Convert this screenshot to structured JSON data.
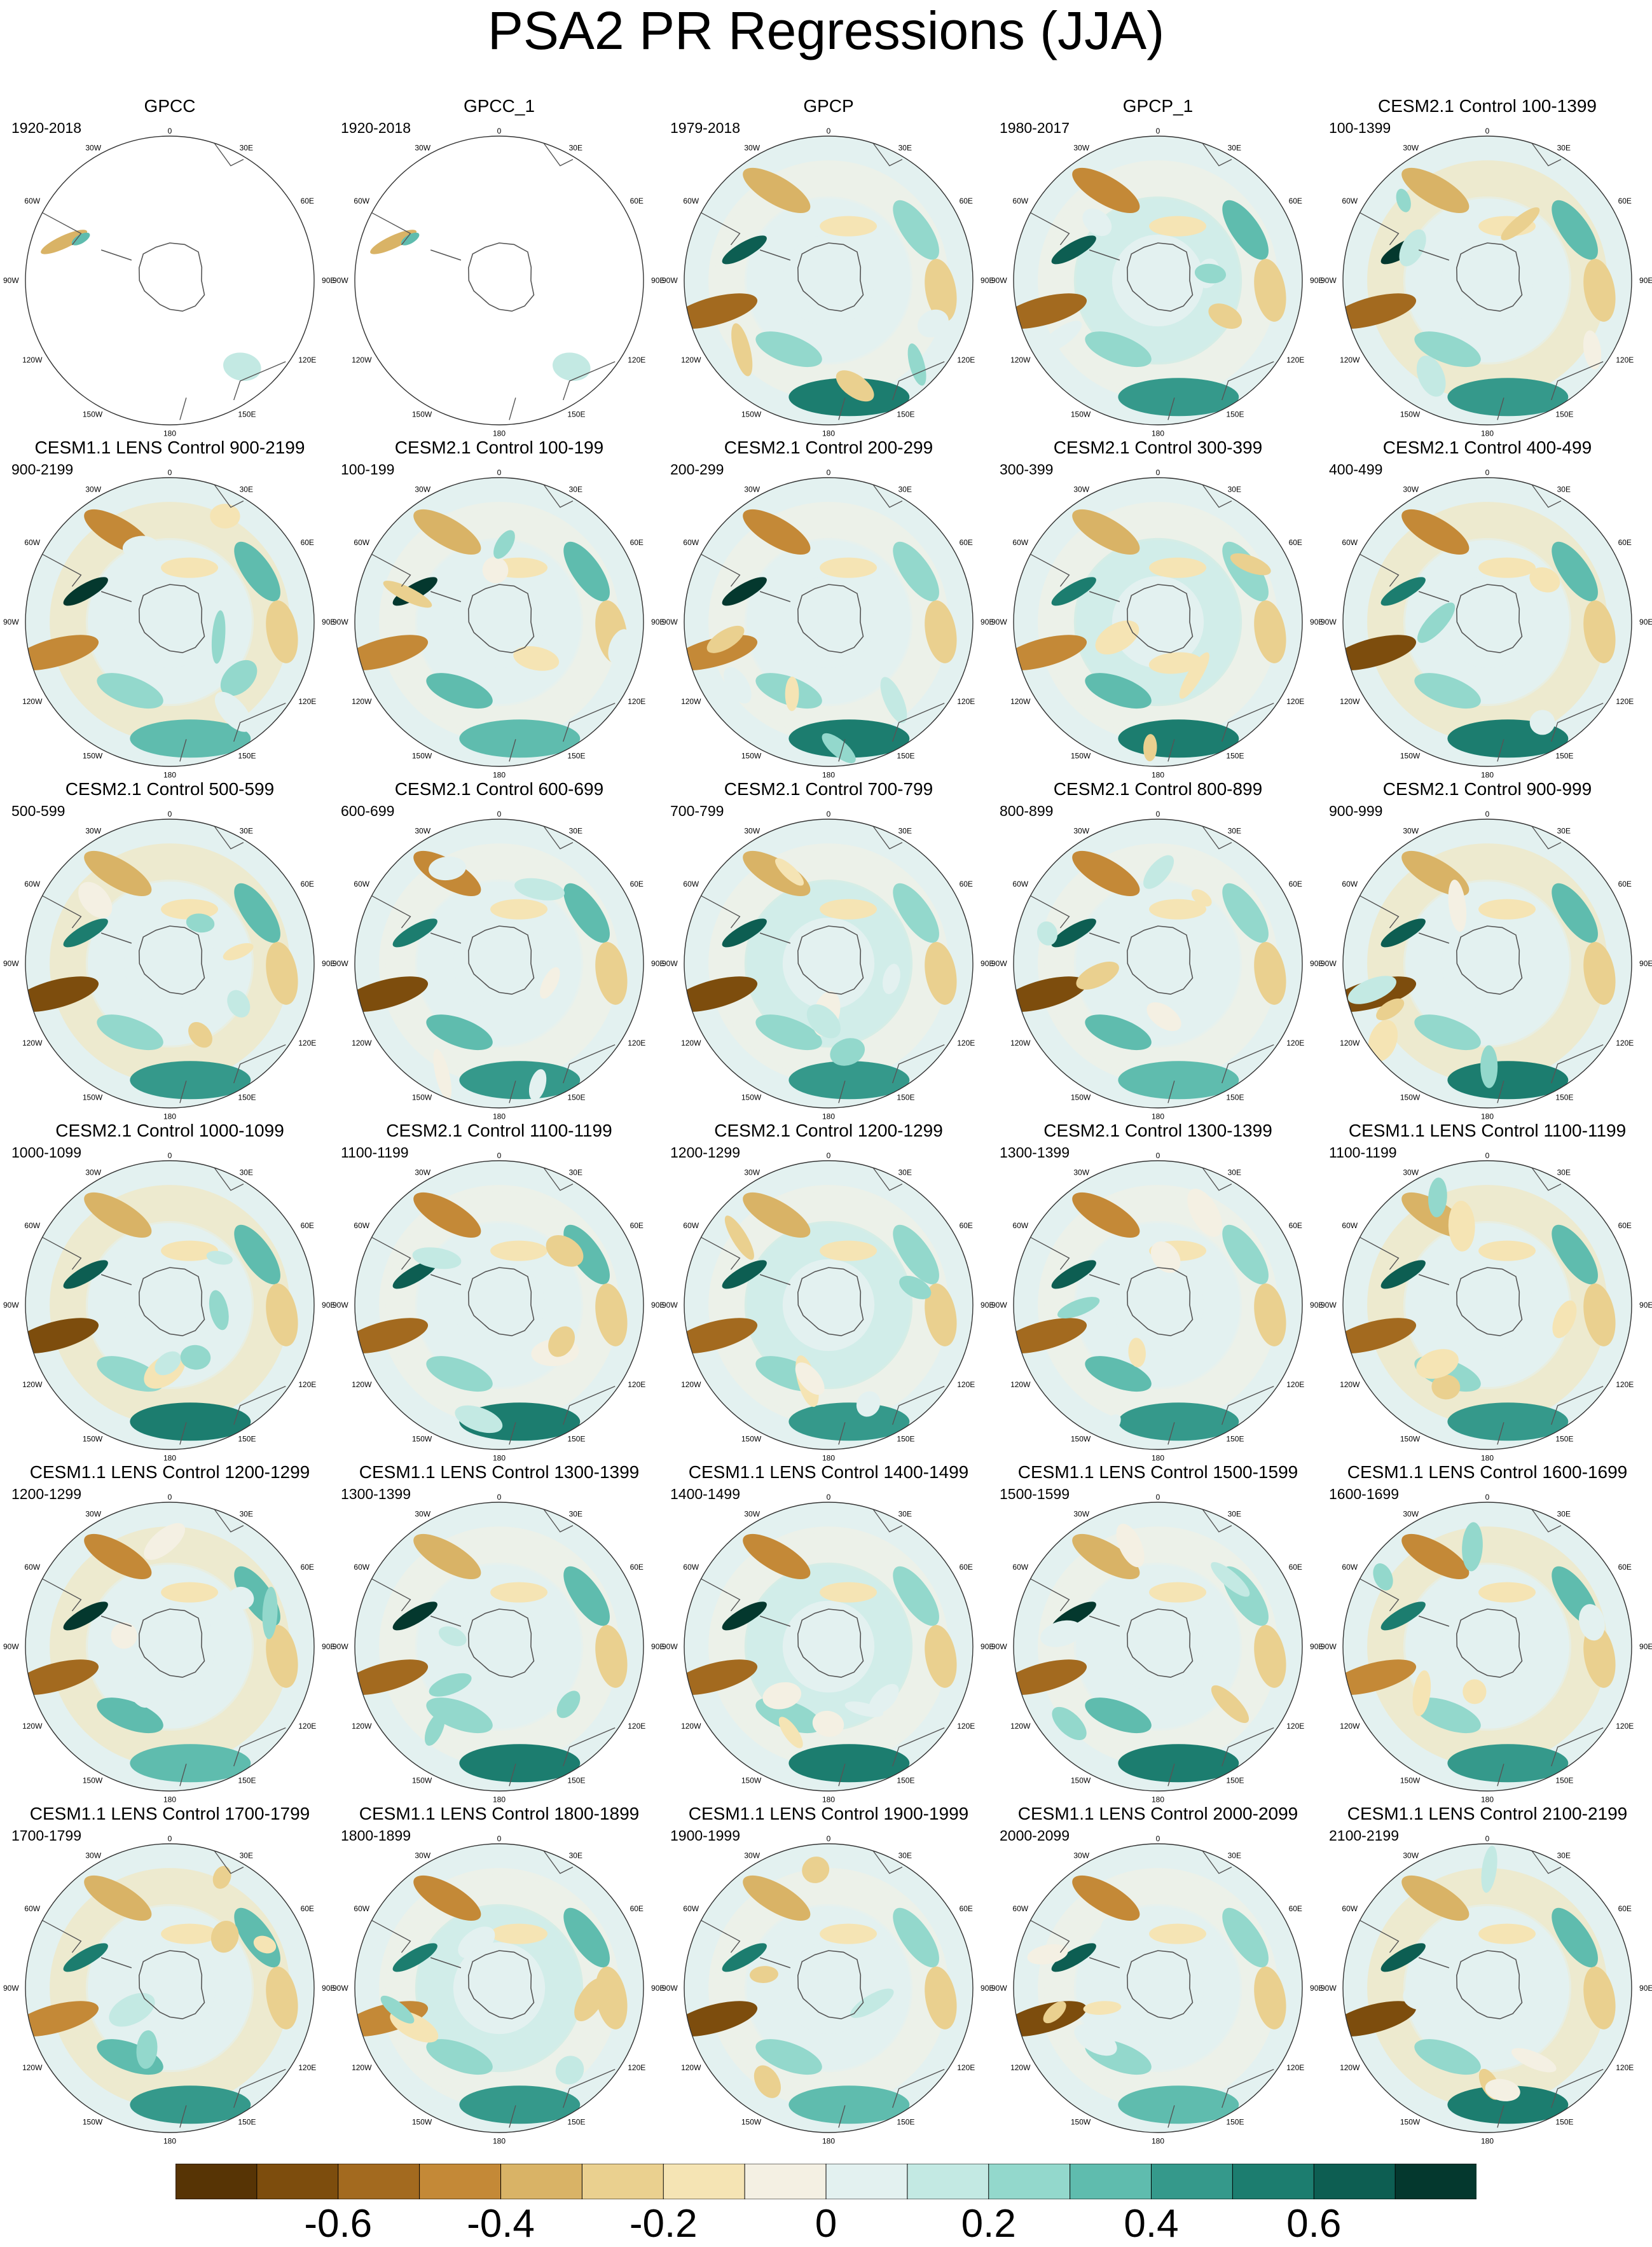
{
  "title": "PSA2 PR Regressions (JJA)",
  "map_labels": {
    "lon_top": "0",
    "lon_bottom": "180",
    "lon_30w": "30W",
    "lon_30e": "30E",
    "lon_60w": "60W",
    "lon_60e": "60E",
    "lon_90w": "90W",
    "lon_90e": "90E",
    "lon_120w": "120W",
    "lon_120e": "120E",
    "lon_150w": "150W",
    "lon_150e": "150E"
  },
  "panels": [
    {
      "title": "GPCC",
      "period": "1920-2018",
      "coverage": "land-only",
      "pattern": {
        "type": "obs-land"
      }
    },
    {
      "title": "GPCC_1",
      "period": "1920-2018",
      "coverage": "land-only",
      "pattern": {
        "type": "obs-land"
      }
    },
    {
      "title": "GPCP",
      "period": "1979-2018",
      "coverage": "full",
      "pattern": {
        "type": "obs"
      }
    },
    {
      "title": "GPCP_1",
      "period": "1980-2017",
      "coverage": "full",
      "pattern": {
        "type": "obs"
      }
    },
    {
      "title": "CESM2.1 Control 100-1399",
      "period": "100-1399",
      "coverage": "full",
      "pattern": {
        "type": "model"
      }
    },
    {
      "title": "CESM1.1 LENS Control 900-2199",
      "period": "900-2199",
      "coverage": "full",
      "pattern": {
        "type": "model"
      }
    },
    {
      "title": "CESM2.1 Control 100-199",
      "period": "100-199",
      "coverage": "full",
      "pattern": {
        "type": "model"
      }
    },
    {
      "title": "CESM2.1 Control 200-299",
      "period": "200-299",
      "coverage": "full",
      "pattern": {
        "type": "model"
      }
    },
    {
      "title": "CESM2.1 Control 300-399",
      "period": "300-399",
      "coverage": "full",
      "pattern": {
        "type": "model"
      }
    },
    {
      "title": "CESM2.1 Control 400-499",
      "period": "400-499",
      "coverage": "full",
      "pattern": {
        "type": "model"
      }
    },
    {
      "title": "CESM2.1 Control 500-599",
      "period": "500-599",
      "coverage": "full",
      "pattern": {
        "type": "model"
      }
    },
    {
      "title": "CESM2.1 Control 600-699",
      "period": "600-699",
      "coverage": "full",
      "pattern": {
        "type": "model"
      }
    },
    {
      "title": "CESM2.1 Control 700-799",
      "period": "700-799",
      "coverage": "full",
      "pattern": {
        "type": "model"
      }
    },
    {
      "title": "CESM2.1 Control 800-899",
      "period": "800-899",
      "coverage": "full",
      "pattern": {
        "type": "model"
      }
    },
    {
      "title": "CESM2.1 Control 900-999",
      "period": "900-999",
      "coverage": "full",
      "pattern": {
        "type": "model"
      }
    },
    {
      "title": "CESM2.1 Control 1000-1099",
      "period": "1000-1099",
      "coverage": "full",
      "pattern": {
        "type": "model"
      }
    },
    {
      "title": "CESM2.1 Control 1100-1199",
      "period": "1100-1199",
      "coverage": "full",
      "pattern": {
        "type": "model"
      }
    },
    {
      "title": "CESM2.1 Control 1200-1299",
      "period": "1200-1299",
      "coverage": "full",
      "pattern": {
        "type": "model"
      }
    },
    {
      "title": "CESM2.1 Control 1300-1399",
      "period": "1300-1399",
      "coverage": "full",
      "pattern": {
        "type": "model"
      }
    },
    {
      "title": "CESM1.1 LENS Control 1100-1199",
      "period": "1100-1199",
      "coverage": "full",
      "pattern": {
        "type": "model"
      }
    },
    {
      "title": "CESM1.1 LENS Control 1200-1299",
      "period": "1200-1299",
      "coverage": "full",
      "pattern": {
        "type": "model"
      }
    },
    {
      "title": "CESM1.1 LENS Control 1300-1399",
      "period": "1300-1399",
      "coverage": "full",
      "pattern": {
        "type": "model"
      }
    },
    {
      "title": "CESM1.1 LENS Control 1400-1499",
      "period": "1400-1499",
      "coverage": "full",
      "pattern": {
        "type": "model"
      }
    },
    {
      "title": "CESM1.1 LENS Control 1500-1599",
      "period": "1500-1599",
      "coverage": "full",
      "pattern": {
        "type": "model"
      }
    },
    {
      "title": "CESM1.1 LENS Control 1600-1699",
      "period": "1600-1699",
      "coverage": "full",
      "pattern": {
        "type": "model"
      }
    },
    {
      "title": "CESM1.1 LENS Control 1700-1799",
      "period": "1700-1799",
      "coverage": "full",
      "pattern": {
        "type": "model"
      }
    },
    {
      "title": "CESM1.1 LENS Control 1800-1899",
      "period": "1800-1899",
      "coverage": "full",
      "pattern": {
        "type": "model"
      }
    },
    {
      "title": "CESM1.1 LENS Control 1900-1999",
      "period": "1900-1999",
      "coverage": "full",
      "pattern": {
        "type": "model"
      }
    },
    {
      "title": "CESM1.1 LENS Control 2000-2099",
      "period": "2000-2099",
      "coverage": "full",
      "pattern": {
        "type": "model"
      }
    },
    {
      "title": "CESM1.1 LENS Control 2100-2199",
      "period": "2100-2199",
      "coverage": "full",
      "pattern": {
        "type": "model"
      }
    }
  ],
  "colorbar": {
    "colors": [
      "#573405",
      "#7d4d0d",
      "#a36a1f",
      "#c48937",
      "#d9b366",
      "#ead08f",
      "#f5e4b4",
      "#f4f0e3",
      "#e3f1f0",
      "#c3e9e3",
      "#93d8cc",
      "#5fbcae",
      "#35998b",
      "#1c7d6f",
      "#0d5e52",
      "#04382e"
    ],
    "ticks": [
      "-0.6",
      "-0.4",
      "-0.2",
      "0",
      "0.2",
      "0.4",
      "0.6"
    ]
  },
  "chart_data": {
    "type": "heatmap",
    "title": "PSA2 PR Regressions (JJA)",
    "projection": "south-polar-stereographic",
    "color_scale": {
      "min": -0.8,
      "max": 0.8,
      "step": 0.1,
      "tick_values": [
        -0.6,
        -0.4,
        -0.2,
        0,
        0.2,
        0.4,
        0.6
      ]
    }
  }
}
